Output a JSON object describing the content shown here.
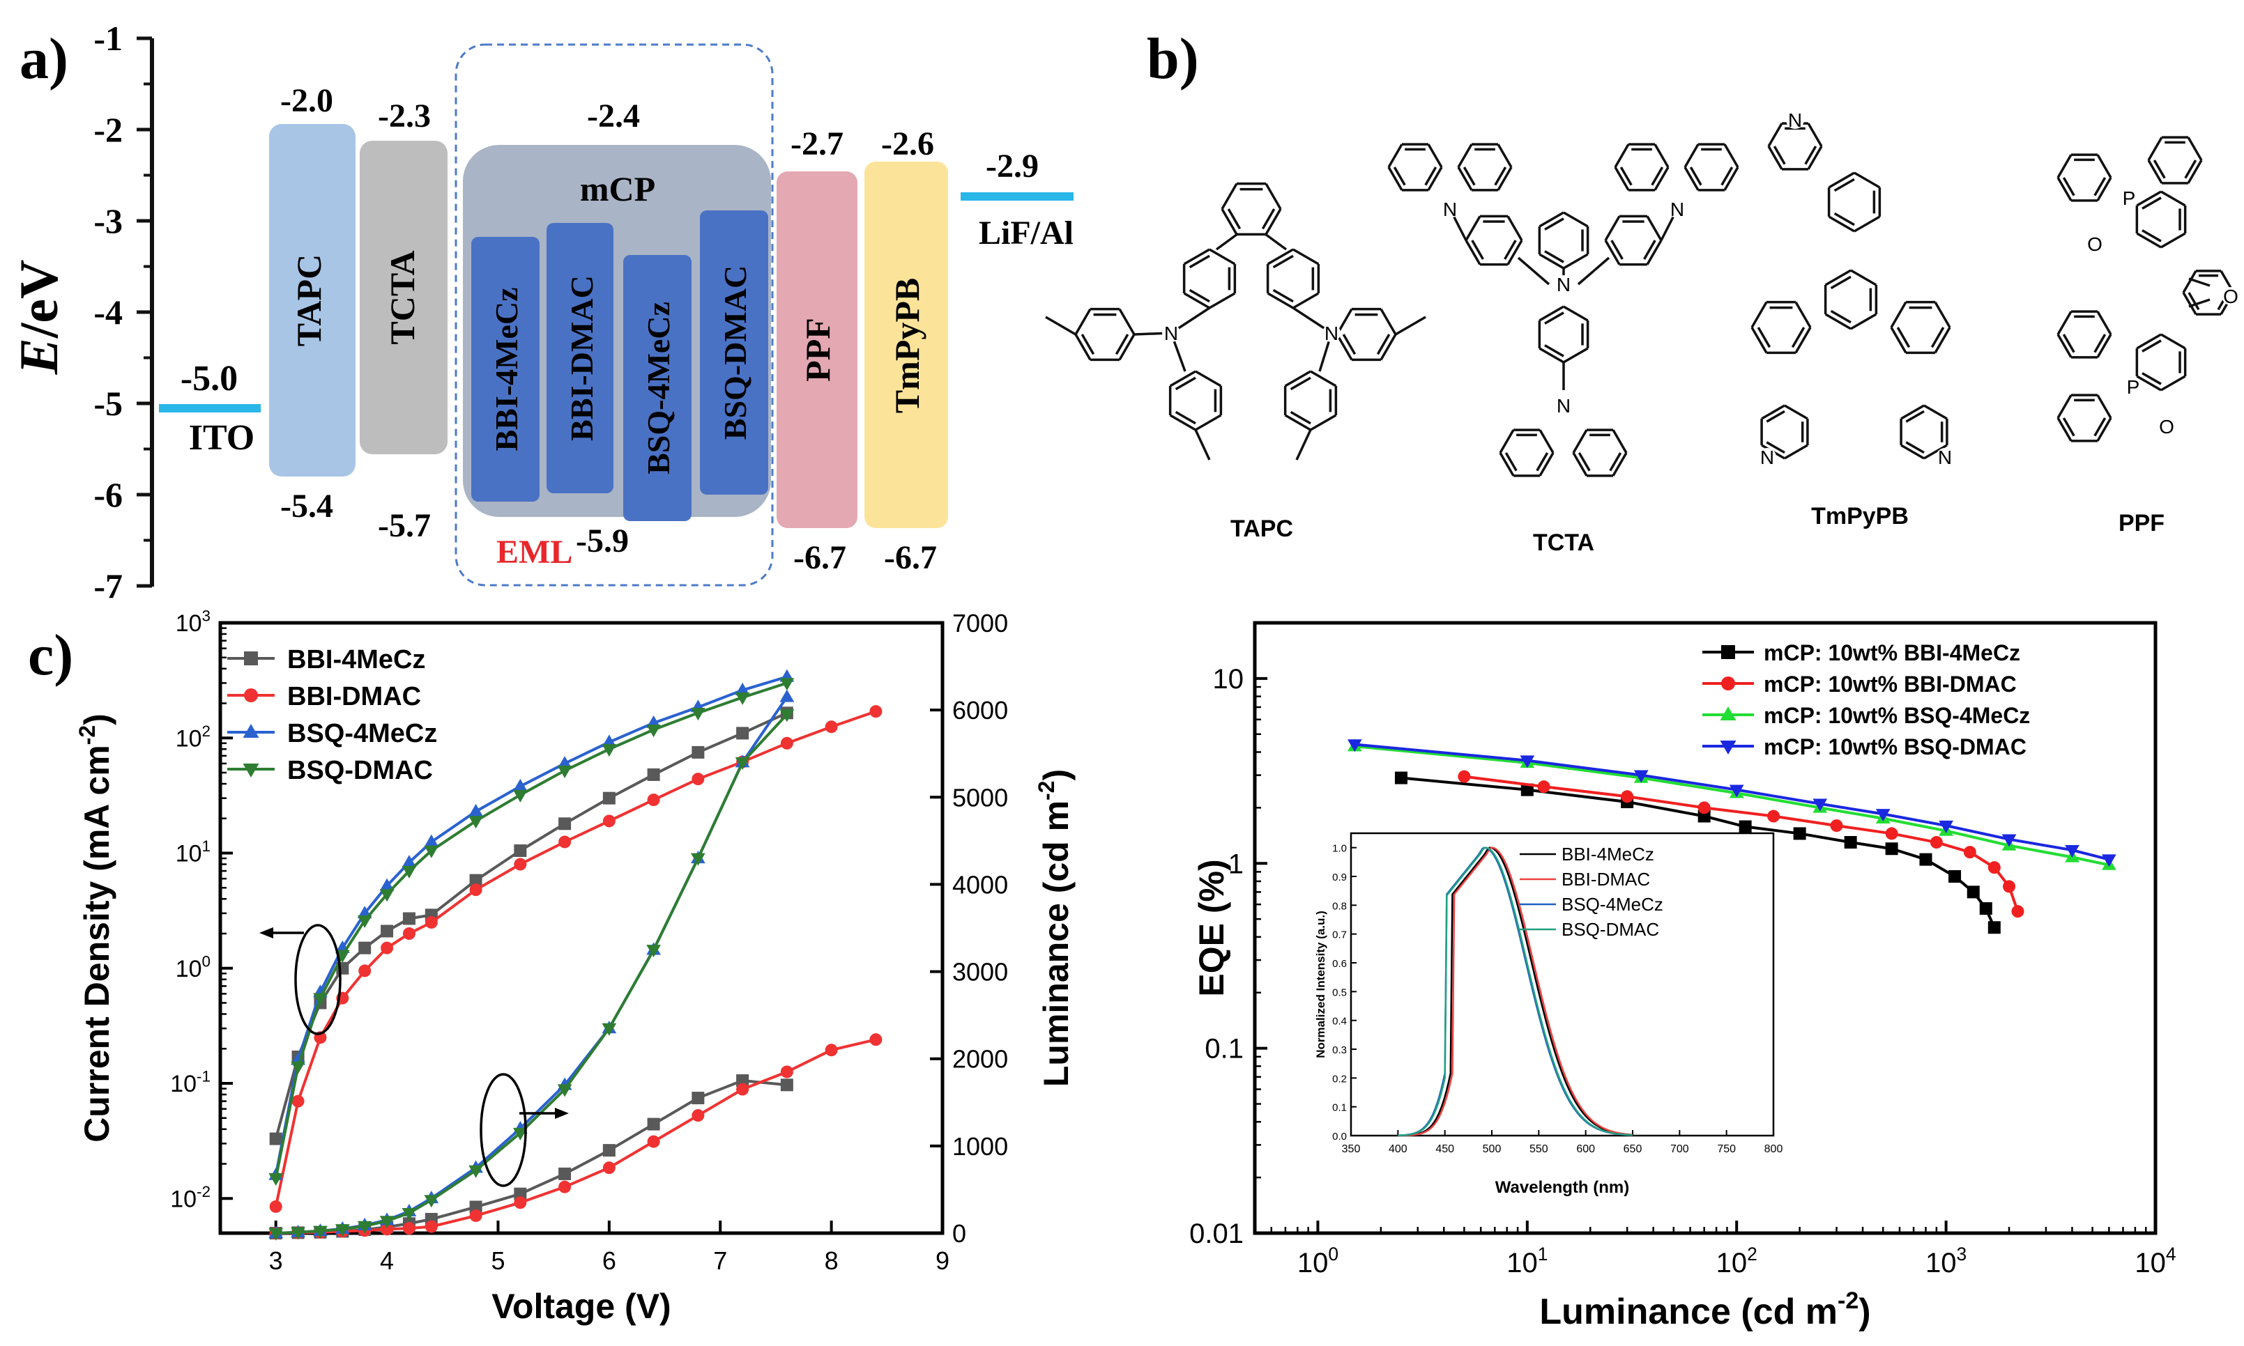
{
  "panels": {
    "a": "a)",
    "b": "b)",
    "c": "c)"
  },
  "energy_diagram": {
    "ylabel_italic": "E",
    "ylabel_rest": "/eV",
    "yticks": [
      "-1",
      "-2",
      "-3",
      "-4",
      "-5",
      "-6",
      "-7"
    ],
    "ito": {
      "label": "ITO",
      "level": "-5.0"
    },
    "cathode": {
      "label": "LiF/Al",
      "level": "-2.9"
    },
    "layers": [
      {
        "name": "TAPC",
        "lumo": "-2.0",
        "homo": "-5.4"
      },
      {
        "name": "TCTA",
        "lumo": "-2.3",
        "homo": "-5.7"
      },
      {
        "name": "PPF",
        "lumo": "-2.7",
        "homo": "-6.7"
      },
      {
        "name": "TmPyPB",
        "lumo": "-2.6",
        "homo": "-6.7"
      }
    ],
    "host": {
      "name": "mCP",
      "lumo": "-2.4",
      "homo": "-5.9"
    },
    "eml_label": "EML",
    "emitters": [
      "BBI-4MeCz",
      "BBI-DMAC",
      "BSQ-4MeCz",
      "BSQ-DMAC"
    ],
    "colors": {
      "ito_line": "#29b6e8",
      "tapc": "#a8c5e6",
      "tcta": "#bdbdbd",
      "mcp": "#a9b4c6",
      "emitter": "#4a72c4",
      "ppf": "#e3a8b2",
      "tmpypb": "#fbe39a",
      "eml_text": "#e8262b",
      "eml_box": "#4d7bc9"
    }
  },
  "structures": {
    "names": [
      "TAPC",
      "TCTA",
      "TmPyPB",
      "PPF"
    ],
    "atoms": {
      "n": "N",
      "o": "O",
      "p": "P"
    }
  },
  "chart_data": [
    {
      "type": "line",
      "title": "",
      "xlabel": "Voltage (V)",
      "ylabel": "Current Density (mA cm",
      "ylabel_sup": "-2",
      "ylabel_close": ")",
      "y2label": "Luminance (cd m",
      "y2label_sup": "-2",
      "y2label_close": ")",
      "xlim": [
        2.5,
        9
      ],
      "xticks": [
        "3",
        "4",
        "5",
        "6",
        "7",
        "8",
        "9"
      ],
      "y_scale": "log",
      "ylim": [
        0.005,
        1000
      ],
      "yticks_base": "10",
      "yticks_exp": [
        "-2",
        "-1",
        "0",
        "1",
        "2",
        "3"
      ],
      "y2lim": [
        0,
        7000
      ],
      "y2ticks": [
        "0",
        "1000",
        "2000",
        "3000",
        "4000",
        "5000",
        "6000",
        "7000"
      ],
      "legend_position": "top-left",
      "series": [
        {
          "name": "BBI-4MeCz",
          "color": "#595959",
          "marker": "square",
          "axis": "current",
          "x": [
            3.0,
            3.2,
            3.4,
            3.6,
            3.8,
            4.0,
            4.2,
            4.4,
            4.8,
            5.2,
            5.6,
            6.0,
            6.4,
            6.8,
            7.2,
            7.6
          ],
          "y": [
            0.033,
            0.17,
            0.5,
            1.0,
            1.5,
            2.1,
            2.7,
            2.9,
            5.8,
            10.5,
            18,
            30,
            48,
            75,
            110,
            165
          ]
        },
        {
          "name": "BBI-DMAC",
          "color": "#f03232",
          "marker": "circle",
          "axis": "current",
          "x": [
            3.0,
            3.2,
            3.4,
            3.6,
            3.8,
            4.0,
            4.2,
            4.4,
            4.8,
            5.2,
            5.6,
            6.0,
            6.4,
            6.8,
            7.2,
            7.6,
            8.0,
            8.4
          ],
          "y": [
            0.0085,
            0.07,
            0.25,
            0.55,
            0.95,
            1.5,
            2.0,
            2.5,
            4.8,
            8.0,
            12.5,
            19,
            29,
            44,
            62,
            90,
            125,
            170
          ]
        },
        {
          "name": "BSQ-4MeCz",
          "color": "#2a62d0",
          "marker": "triangle-up",
          "axis": "current",
          "x": [
            3.0,
            3.2,
            3.4,
            3.6,
            3.8,
            4.0,
            4.2,
            4.4,
            4.8,
            5.2,
            5.6,
            6.0,
            6.4,
            6.8,
            7.2,
            7.6
          ],
          "y": [
            0.016,
            0.16,
            0.62,
            1.5,
            3.0,
            5.2,
            8.3,
            12.5,
            23,
            38,
            60,
            92,
            135,
            185,
            260,
            340
          ]
        },
        {
          "name": "BSQ-DMAC",
          "color": "#2e7d32",
          "marker": "triangle-down",
          "axis": "current",
          "x": [
            3.0,
            3.2,
            3.4,
            3.6,
            3.8,
            4.0,
            4.2,
            4.4,
            4.8,
            5.2,
            5.6,
            6.0,
            6.4,
            6.8,
            7.2,
            7.6
          ],
          "y": [
            0.015,
            0.14,
            0.55,
            1.3,
            2.6,
            4.4,
            7.0,
            10.5,
            19,
            32,
            52,
            80,
            118,
            165,
            225,
            300
          ]
        },
        {
          "name": "BBI-4MeCz",
          "color": "#595959",
          "marker": "square",
          "axis": "luminance",
          "x": [
            3.0,
            3.2,
            3.4,
            3.6,
            3.8,
            4.0,
            4.2,
            4.4,
            4.8,
            5.2,
            5.6,
            6.0,
            6.4,
            6.8,
            7.2,
            7.6
          ],
          "y": [
            0,
            5,
            10,
            20,
            40,
            70,
            110,
            160,
            300,
            450,
            680,
            950,
            1250,
            1550,
            1750,
            1700
          ]
        },
        {
          "name": "BBI-DMAC",
          "color": "#f03232",
          "marker": "circle",
          "axis": "luminance",
          "x": [
            3.0,
            3.2,
            3.4,
            3.6,
            3.8,
            4.0,
            4.2,
            4.4,
            4.8,
            5.2,
            5.6,
            6.0,
            6.4,
            6.8,
            7.2,
            7.6,
            8.0,
            8.4
          ],
          "y": [
            0,
            5,
            10,
            20,
            30,
            45,
            55,
            75,
            200,
            350,
            530,
            750,
            1050,
            1350,
            1650,
            1850,
            2100,
            2220
          ]
        },
        {
          "name": "BSQ-4MeCz",
          "color": "#2a62d0",
          "marker": "triangle-up",
          "axis": "luminance",
          "x": [
            3.0,
            3.2,
            3.4,
            3.6,
            3.8,
            4.0,
            4.2,
            4.4,
            4.8,
            5.2,
            5.6,
            6.0,
            6.4,
            6.8,
            7.2,
            7.6
          ],
          "y": [
            0,
            10,
            25,
            50,
            90,
            150,
            250,
            400,
            750,
            1200,
            1700,
            2350,
            3250,
            4300,
            5400,
            6150
          ]
        },
        {
          "name": "BSQ-DMAC",
          "color": "#2e7d32",
          "marker": "triangle-down",
          "axis": "luminance",
          "x": [
            3.0,
            3.2,
            3.4,
            3.6,
            3.8,
            4.0,
            4.2,
            4.4,
            4.8,
            5.2,
            5.6,
            6.0,
            6.4,
            6.8,
            7.2,
            7.6
          ],
          "y": [
            0,
            10,
            25,
            45,
            80,
            140,
            230,
            380,
            720,
            1150,
            1650,
            2350,
            3250,
            4300,
            5400,
            5950
          ]
        }
      ]
    },
    {
      "type": "line",
      "title": "",
      "xlabel": "Luminance (cd m",
      "xlabel_sup": "-2",
      "xlabel_close": ")",
      "ylabel": "EQE (%)",
      "x_scale": "log",
      "y_scale": "log",
      "xlim": [
        0.5,
        10000
      ],
      "ylim": [
        0.01,
        20
      ],
      "xticks_base": "10",
      "xticks_exp": [
        "0",
        "1",
        "2",
        "3",
        "4"
      ],
      "yticks": [
        "10",
        "1",
        "0.1",
        "0.01"
      ],
      "legend_position": "top-right",
      "series": [
        {
          "name": "mCP: 10wt% BBI-4MeCz",
          "color": "#000000",
          "marker": "square",
          "x": [
            2.5,
            10,
            30,
            70,
            110,
            200,
            350,
            550,
            800,
            1100,
            1350,
            1550,
            1700
          ],
          "y": [
            2.9,
            2.5,
            2.15,
            1.8,
            1.58,
            1.45,
            1.3,
            1.2,
            1.05,
            0.85,
            0.7,
            0.57,
            0.45
          ]
        },
        {
          "name": "mCP: 10wt% BBI-DMAC",
          "color": "#f02020",
          "marker": "circle",
          "x": [
            5,
            12,
            30,
            70,
            150,
            300,
            550,
            900,
            1300,
            1700,
            2000,
            2200
          ],
          "y": [
            2.95,
            2.6,
            2.3,
            2.0,
            1.8,
            1.6,
            1.45,
            1.3,
            1.15,
            0.95,
            0.75,
            0.55
          ]
        },
        {
          "name": "mCP: 10wt% BSQ-4MeCz",
          "color": "#22dd33",
          "marker": "triangle-up",
          "x": [
            1.5,
            10,
            35,
            100,
            250,
            500,
            1000,
            2000,
            4000,
            6000
          ],
          "y": [
            4.3,
            3.5,
            2.9,
            2.4,
            2.0,
            1.75,
            1.5,
            1.25,
            1.08,
            0.98
          ]
        },
        {
          "name": "mCP: 10wt% BSQ-DMAC",
          "color": "#1a28e0",
          "marker": "triangle-down",
          "x": [
            1.5,
            10,
            35,
            100,
            250,
            500,
            1000,
            2000,
            4000,
            6000
          ],
          "y": [
            4.4,
            3.6,
            3.0,
            2.5,
            2.1,
            1.85,
            1.6,
            1.35,
            1.18,
            1.05
          ]
        }
      ]
    },
    {
      "type": "line",
      "title": "",
      "xlabel": "Wavelength (nm)",
      "ylabel": "Normalized Intensity (a.u.)",
      "xlim": [
        350,
        800
      ],
      "ylim": [
        0,
        1.05
      ],
      "xticks": [
        "350",
        "400",
        "450",
        "500",
        "550",
        "600",
        "650",
        "700",
        "750",
        "800"
      ],
      "yticks": [
        "0.0",
        "0.1",
        "0.2",
        "0.3",
        "0.4",
        "0.5",
        "0.6",
        "0.7",
        "0.8",
        "0.9",
        "1.0"
      ],
      "legend_position": "top-right",
      "series": [
        {
          "name": "BBI-4MeCz",
          "color": "#000000",
          "peak_nm": 498
        },
        {
          "name": "BBI-DMAC",
          "color": "#f04040",
          "peak_nm": 500
        },
        {
          "name": "BSQ-4MeCz",
          "color": "#1f5fc0",
          "peak_nm": 492
        },
        {
          "name": "BSQ-DMAC",
          "color": "#20a080",
          "peak_nm": 493
        }
      ]
    }
  ]
}
